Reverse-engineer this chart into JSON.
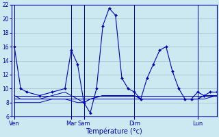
{
  "xlabel": "Température (°c)",
  "background_color": "#cce8f0",
  "grid_color": "#99bbcc",
  "line_color": "#0000bb",
  "marker_color": "#0000bb",
  "x_tick_labels": [
    "Ven",
    "Mar",
    "Sam",
    "Dim",
    "Lun"
  ],
  "x_tick_positions": [
    0,
    4.5,
    5.5,
    9.5,
    14.5
  ],
  "ylim": [
    6,
    22
  ],
  "yticks": [
    6,
    8,
    10,
    12,
    14,
    16,
    18,
    20,
    22
  ],
  "xlim": [
    -0.2,
    16.0
  ],
  "series": {
    "main": {
      "x": [
        0,
        0.5,
        1.0,
        2.0,
        3.0,
        4.0,
        4.5,
        5.0,
        5.5,
        6.0,
        6.5,
        7.0,
        7.5,
        8.0,
        8.5,
        9.0,
        9.5,
        10.0,
        10.5,
        11.0,
        11.5,
        12.0,
        12.5,
        13.0,
        13.5,
        14.0,
        14.5,
        15.0,
        15.5,
        16.0
      ],
      "y": [
        16,
        10,
        9.5,
        9,
        9.5,
        10,
        15.5,
        13.5,
        8,
        6.5,
        10,
        19,
        21.5,
        20.5,
        11.5,
        10,
        9.5,
        8.5,
        11.5,
        13.5,
        15.5,
        16,
        12.5,
        10,
        8.5,
        8.5,
        9.5,
        9,
        9.5,
        9.5
      ]
    },
    "flat1": {
      "x": [
        0,
        0.5,
        1.0,
        2.0,
        3.0,
        4.0,
        4.5,
        5.0,
        5.5,
        6.0,
        7.0,
        8.0,
        9.0,
        9.5,
        10.0,
        11.0,
        12.0,
        13.0,
        14.0,
        14.5,
        15.0,
        16.0
      ],
      "y": [
        9,
        8.5,
        8.5,
        8.5,
        9,
        9.5,
        9,
        8.5,
        8,
        8.5,
        9,
        9,
        9,
        9,
        8.5,
        8.5,
        8.5,
        8.5,
        8.5,
        8.5,
        9,
        9
      ]
    },
    "flat2": {
      "x": [
        0,
        0.5,
        1.0,
        2.0,
        3.0,
        4.0,
        4.5,
        5.0,
        5.5,
        6.0,
        7.0,
        8.0,
        9.0,
        9.5,
        10.0,
        11.0,
        12.0,
        13.0,
        14.0,
        14.5,
        15.0,
        16.0
      ],
      "y": [
        8.5,
        8.5,
        8.5,
        8.5,
        8.5,
        8.5,
        8.5,
        8.5,
        8.5,
        8.5,
        9,
        9,
        9,
        9,
        8.5,
        8.5,
        8.5,
        8.5,
        8.5,
        8.5,
        8.5,
        9
      ]
    },
    "flat3": {
      "x": [
        0,
        0.5,
        1.0,
        2.0,
        3.0,
        4.0,
        5.0,
        5.5,
        6.0,
        7.0,
        8.0,
        9.0,
        9.5,
        10.0,
        11.0,
        12.0,
        13.0,
        14.0,
        14.5,
        15.0,
        16.0
      ],
      "y": [
        8,
        8,
        8,
        8,
        8.5,
        8.5,
        8,
        8,
        8.5,
        8.5,
        8.5,
        8.5,
        8.5,
        8.5,
        8.5,
        8.5,
        8.5,
        8.5,
        8.5,
        9,
        9
      ]
    },
    "flat4": {
      "x": [
        0,
        0.5,
        1.0,
        2.0,
        3.0,
        4.0,
        5.0,
        5.5,
        6.0,
        7.0,
        8.0,
        9.0,
        9.5,
        10.0,
        11.0,
        12.0,
        13.0,
        14.0,
        14.5,
        15.0,
        16.0
      ],
      "y": [
        9,
        9,
        9,
        9,
        9,
        9,
        9,
        9,
        9,
        9,
        9,
        9,
        9,
        9,
        9,
        9,
        9,
        9,
        9,
        9,
        9
      ]
    }
  }
}
